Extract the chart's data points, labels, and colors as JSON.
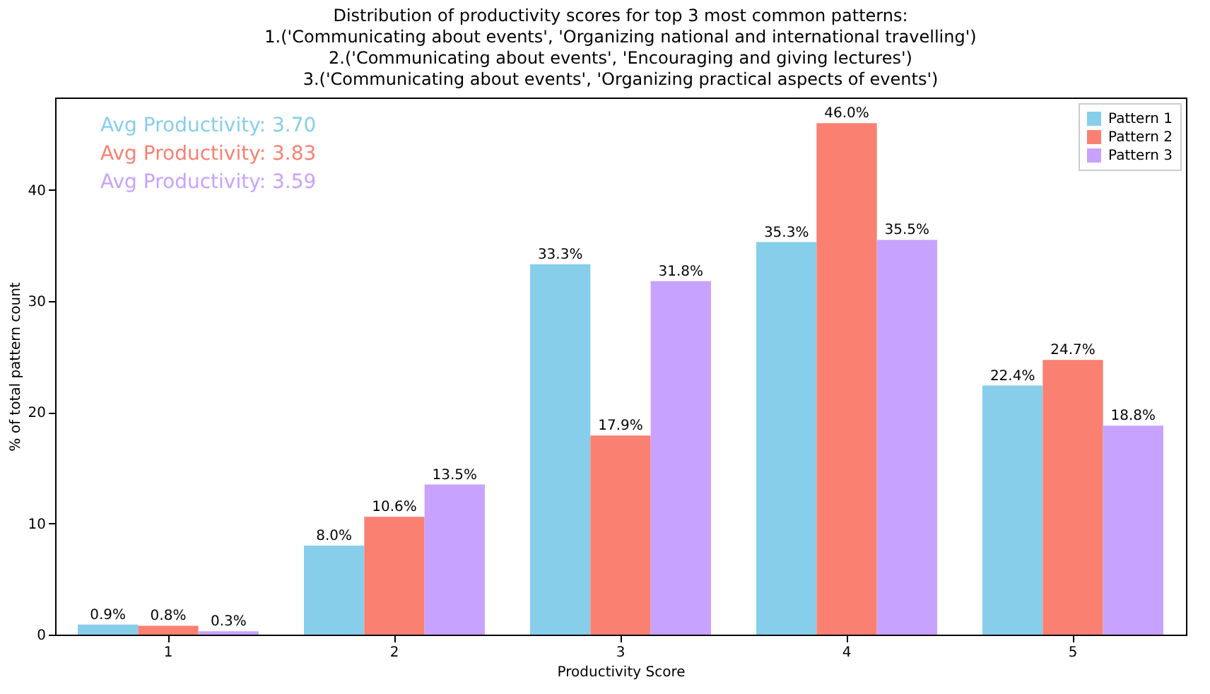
{
  "chart_data": {
    "type": "bar",
    "title": "Distribution of productivity scores for top 3 most common patterns:\n1.('Communicating about events', 'Organizing national and international travelling')\n2.('Communicating about events', 'Encouraging and giving lectures')\n3.('Communicating about events', 'Organizing practical aspects of events')",
    "xlabel": "Productivity Score",
    "ylabel": "% of total pattern count",
    "categories": [
      "1",
      "2",
      "3",
      "4",
      "5"
    ],
    "series": [
      {
        "name": "Pattern 1",
        "color": "#87ceeb",
        "values": [
          0.9,
          8.0,
          33.3,
          35.3,
          22.4
        ],
        "value_labels": [
          "0.9%",
          "8.0%",
          "33.3%",
          "35.3%",
          "22.4%"
        ]
      },
      {
        "name": "Pattern 2",
        "color": "#fa8072",
        "values": [
          0.8,
          10.6,
          17.9,
          46.0,
          24.7
        ],
        "value_labels": [
          "0.8%",
          "10.6%",
          "17.9%",
          "46.0%",
          "24.7%"
        ]
      },
      {
        "name": "Pattern 3",
        "color": "#c8a2ff",
        "values": [
          0.3,
          13.5,
          31.8,
          35.5,
          18.8
        ],
        "value_labels": [
          "0.3%",
          "13.5%",
          "31.8%",
          "35.5%",
          "18.8%"
        ]
      }
    ],
    "annotations": [
      "Avg Productivity: 3.70",
      "Avg Productivity: 3.83",
      "Avg Productivity: 3.59"
    ],
    "ylim": [
      0,
      48.3
    ],
    "yticks": [
      0,
      10,
      20,
      30,
      40
    ],
    "grid": false,
    "legend": "top right"
  }
}
